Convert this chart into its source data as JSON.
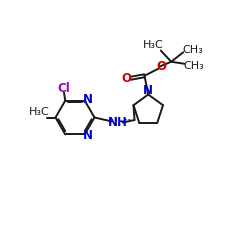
{
  "bg_color": "#ffffff",
  "bond_color": "#1a1a1a",
  "N_color": "#0000cc",
  "Cl_color": "#9900cc",
  "O_color": "#cc0000",
  "line_width": 1.4,
  "font_size": 8.5,
  "fig_width": 2.5,
  "fig_height": 2.5,
  "dpi": 100,
  "xlim": [
    0,
    10
  ],
  "ylim": [
    0,
    10
  ]
}
